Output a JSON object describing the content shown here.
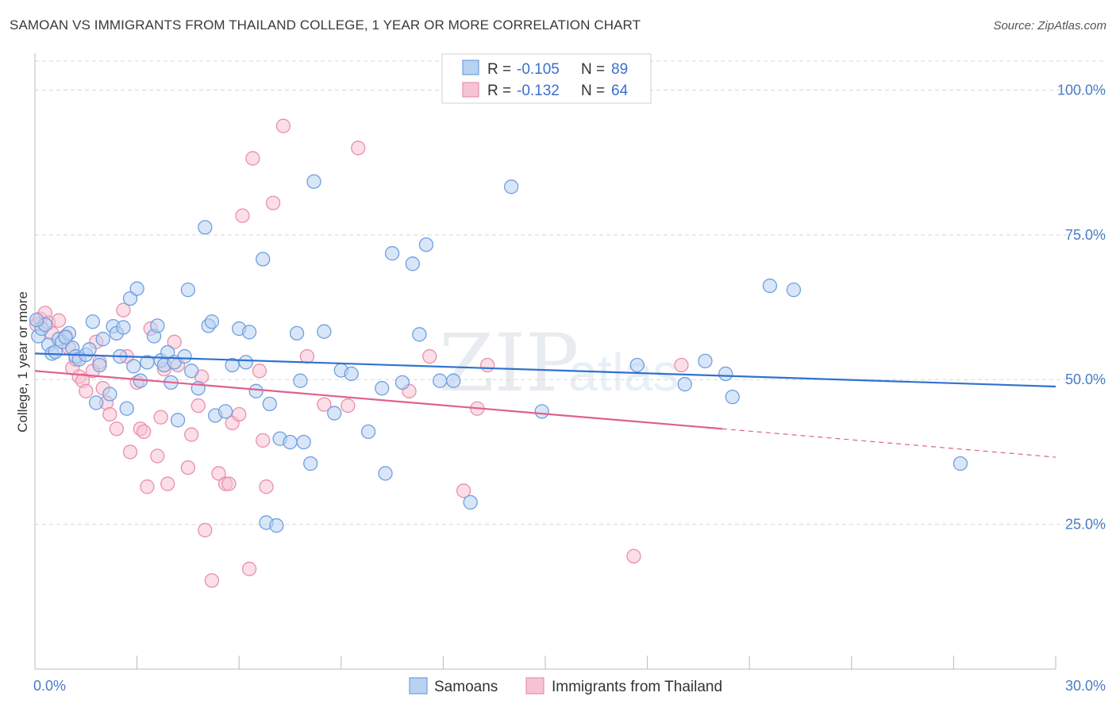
{
  "title": "SAMOAN VS IMMIGRANTS FROM THAILAND COLLEGE, 1 YEAR OR MORE CORRELATION CHART",
  "source": "Source: ZipAtlas.com",
  "watermark": {
    "zip": "ZIP",
    "atlas": "atlas"
  },
  "colors": {
    "blue_fill": "#b9d2f2",
    "blue_stroke": "#6f9fe0",
    "blue_line": "#2f72d0",
    "pink_fill": "#f7c3d4",
    "pink_stroke": "#e890ae",
    "pink_line": "#e0608c",
    "grid": "#d8d8d8",
    "tick_label": "#4a7cc7"
  },
  "stats": [
    {
      "r_label": "R =",
      "r_value": "-0.105",
      "n_label": "N =",
      "n_value": "89"
    },
    {
      "r_label": "R =",
      "r_value": "-0.132",
      "n_label": "N =",
      "n_value": "64"
    }
  ],
  "chart_data": {
    "type": "scatter",
    "ylabel": "College, 1 year or more",
    "xlim": [
      0,
      30
    ],
    "ylim": [
      0,
      105
    ],
    "x_ticks": [
      {
        "value": 0,
        "label": "0.0%"
      },
      {
        "value": 30,
        "label": "30.0%"
      }
    ],
    "y_ticks": [
      {
        "value": 100,
        "label": "100.0%"
      },
      {
        "value": 75,
        "label": "75.0%"
      },
      {
        "value": 50,
        "label": "50.0%"
      },
      {
        "value": 25,
        "label": "25.0%"
      }
    ],
    "legend_position": "bottom",
    "series": [
      {
        "name": "Samoans",
        "trend": {
          "x0": 0,
          "y0": 54.5,
          "x1": 30,
          "y1": 48.8
        },
        "points": [
          [
            0.1,
            57.5
          ],
          [
            0.2,
            58.8
          ],
          [
            0.3,
            59.5
          ],
          [
            0.4,
            56.0
          ],
          [
            0.5,
            54.5
          ],
          [
            0.6,
            54.8
          ],
          [
            0.7,
            57.0
          ],
          [
            0.8,
            56.5
          ],
          [
            1.0,
            58.0
          ],
          [
            1.1,
            55.5
          ],
          [
            1.2,
            54.0
          ],
          [
            1.3,
            53.5
          ],
          [
            1.5,
            54.3
          ],
          [
            1.7,
            60.0
          ],
          [
            1.8,
            46.0
          ],
          [
            1.9,
            52.5
          ],
          [
            2.0,
            57.0
          ],
          [
            2.2,
            47.5
          ],
          [
            2.3,
            59.2
          ],
          [
            2.4,
            58.0
          ],
          [
            2.5,
            54.0
          ],
          [
            2.6,
            59.0
          ],
          [
            2.7,
            45.0
          ],
          [
            2.8,
            64.0
          ],
          [
            2.9,
            52.3
          ],
          [
            3.0,
            65.7
          ],
          [
            3.1,
            49.8
          ],
          [
            3.3,
            53.0
          ],
          [
            3.5,
            57.5
          ],
          [
            3.6,
            59.3
          ],
          [
            3.7,
            53.3
          ],
          [
            3.8,
            52.5
          ],
          [
            3.9,
            54.7
          ],
          [
            4.0,
            49.5
          ],
          [
            4.1,
            53.0
          ],
          [
            4.2,
            43.0
          ],
          [
            4.4,
            54.0
          ],
          [
            4.5,
            65.5
          ],
          [
            4.6,
            51.5
          ],
          [
            4.8,
            48.5
          ],
          [
            5.0,
            76.3
          ],
          [
            5.1,
            59.3
          ],
          [
            5.2,
            60.0
          ],
          [
            5.3,
            43.8
          ],
          [
            5.6,
            44.5
          ],
          [
            5.8,
            52.5
          ],
          [
            6.0,
            58.8
          ],
          [
            6.2,
            53.0
          ],
          [
            6.3,
            58.2
          ],
          [
            6.5,
            48.0
          ],
          [
            6.7,
            70.8
          ],
          [
            6.8,
            25.3
          ],
          [
            6.9,
            45.8
          ],
          [
            7.1,
            24.8
          ],
          [
            7.2,
            39.8
          ],
          [
            7.5,
            39.2
          ],
          [
            7.7,
            58.0
          ],
          [
            7.8,
            49.8
          ],
          [
            7.9,
            39.2
          ],
          [
            8.1,
            35.5
          ],
          [
            8.2,
            84.2
          ],
          [
            8.5,
            58.3
          ],
          [
            8.8,
            44.2
          ],
          [
            9.0,
            51.6
          ],
          [
            9.3,
            51.0
          ],
          [
            9.8,
            41.0
          ],
          [
            10.2,
            48.5
          ],
          [
            10.3,
            33.8
          ],
          [
            10.5,
            71.8
          ],
          [
            10.8,
            49.5
          ],
          [
            11.1,
            70.0
          ],
          [
            11.3,
            57.8
          ],
          [
            11.5,
            73.3
          ],
          [
            11.9,
            49.8
          ],
          [
            12.3,
            49.8
          ],
          [
            12.8,
            28.8
          ],
          [
            14.0,
            83.3
          ],
          [
            14.9,
            44.5
          ],
          [
            17.7,
            52.5
          ],
          [
            19.1,
            49.2
          ],
          [
            19.7,
            53.2
          ],
          [
            20.3,
            51.0
          ],
          [
            20.5,
            47.0
          ],
          [
            21.6,
            66.2
          ],
          [
            22.3,
            65.5
          ],
          [
            27.2,
            35.5
          ],
          [
            0.05,
            60.3
          ],
          [
            0.9,
            57.3
          ],
          [
            1.6,
            55.2
          ]
        ]
      },
      {
        "name": "Immigrants from Thailand",
        "trend": {
          "x0": 0,
          "y0": 51.5,
          "x1": 20.2,
          "y1": 41.5
        },
        "trend_dashed": {
          "x0": 20.2,
          "y0": 41.5,
          "x1": 30,
          "y1": 36.6
        },
        "points": [
          [
            0.05,
            59.5
          ],
          [
            0.15,
            60.5
          ],
          [
            0.3,
            61.5
          ],
          [
            0.4,
            59.8
          ],
          [
            0.5,
            58.0
          ],
          [
            0.7,
            60.2
          ],
          [
            0.9,
            57.5
          ],
          [
            1.0,
            55.5
          ],
          [
            1.1,
            52.0
          ],
          [
            1.2,
            53.5
          ],
          [
            1.3,
            50.5
          ],
          [
            1.4,
            49.8
          ],
          [
            1.5,
            48.0
          ],
          [
            1.7,
            51.5
          ],
          [
            1.8,
            56.5
          ],
          [
            1.9,
            53.0
          ],
          [
            2.0,
            48.5
          ],
          [
            2.1,
            46.0
          ],
          [
            2.2,
            44.0
          ],
          [
            2.4,
            41.5
          ],
          [
            2.6,
            62.0
          ],
          [
            2.7,
            54.0
          ],
          [
            2.8,
            37.5
          ],
          [
            3.0,
            49.5
          ],
          [
            3.1,
            41.5
          ],
          [
            3.2,
            41.0
          ],
          [
            3.3,
            31.5
          ],
          [
            3.4,
            58.8
          ],
          [
            3.6,
            36.8
          ],
          [
            3.7,
            43.5
          ],
          [
            3.8,
            51.8
          ],
          [
            3.9,
            32.0
          ],
          [
            4.1,
            56.5
          ],
          [
            4.2,
            52.5
          ],
          [
            4.5,
            34.8
          ],
          [
            4.6,
            40.5
          ],
          [
            4.8,
            45.5
          ],
          [
            4.9,
            50.5
          ],
          [
            5.0,
            24.0
          ],
          [
            5.2,
            15.3
          ],
          [
            5.4,
            33.8
          ],
          [
            5.6,
            32.0
          ],
          [
            5.7,
            32.0
          ],
          [
            5.8,
            42.5
          ],
          [
            6.0,
            44.0
          ],
          [
            6.1,
            78.3
          ],
          [
            6.3,
            17.3
          ],
          [
            6.4,
            88.2
          ],
          [
            6.6,
            51.5
          ],
          [
            6.7,
            39.5
          ],
          [
            6.8,
            31.5
          ],
          [
            7.0,
            80.5
          ],
          [
            7.3,
            93.8
          ],
          [
            8.0,
            54.0
          ],
          [
            8.5,
            45.7
          ],
          [
            9.2,
            45.5
          ],
          [
            9.5,
            90.0
          ],
          [
            11.0,
            48.0
          ],
          [
            11.6,
            54.0
          ],
          [
            12.6,
            30.8
          ],
          [
            13.0,
            45.0
          ],
          [
            13.3,
            52.5
          ],
          [
            17.6,
            19.5
          ],
          [
            19.0,
            52.5
          ]
        ]
      }
    ]
  }
}
